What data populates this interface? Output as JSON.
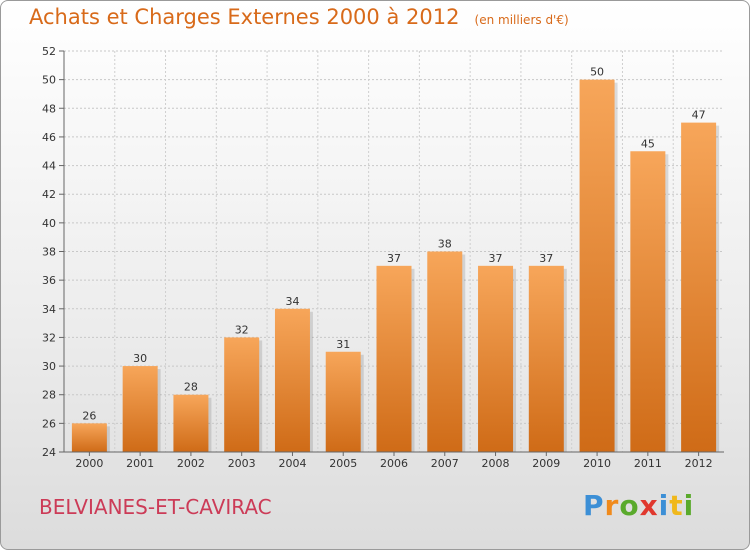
{
  "chart_data": {
    "type": "bar",
    "title": "Achats et Charges Externes 2000 à 2012",
    "subtitle": "(en milliers d'€)",
    "categories": [
      "2000",
      "2001",
      "2002",
      "2003",
      "2004",
      "2005",
      "2006",
      "2007",
      "2008",
      "2009",
      "2010",
      "2011",
      "2012"
    ],
    "values": [
      26,
      30,
      28,
      32,
      34,
      31,
      37,
      38,
      37,
      37,
      50,
      45,
      47
    ],
    "ylim": [
      24,
      52
    ],
    "yticks": [
      24,
      26,
      28,
      30,
      32,
      34,
      36,
      38,
      40,
      42,
      44,
      46,
      48,
      50,
      52
    ],
    "grid": true,
    "bar_color_top": "#f7a65a",
    "bar_color_bottom": "#cf6b17"
  },
  "footer": {
    "commune": "BELVIANES-ET-CAVIRAC",
    "brand_letters": [
      "P",
      "r",
      "o",
      "x",
      "i",
      "t",
      "i"
    ],
    "brand_colors": [
      "#3c8fd6",
      "#f08a1c",
      "#5aaa2c",
      "#e0382e",
      "#3c8fd6",
      "#f0b81c",
      "#5aaa2c"
    ]
  }
}
